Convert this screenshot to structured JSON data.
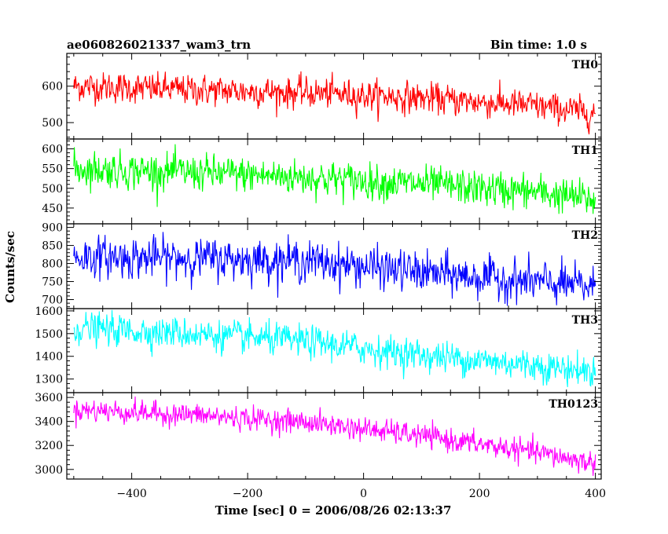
{
  "header": {
    "title": "ae060826021337_wam3_trn",
    "bin_time": "Bin time: 1.0 s"
  },
  "chart_data": {
    "type": "line",
    "title": "ae060826021337_wam3_trn",
    "xlabel": "Time [sec] 0 = 2006/08/26 02:13:37",
    "ylabel": "Counts/sec",
    "xlim": [
      -512,
      410
    ],
    "x_range": [
      -500,
      400
    ],
    "bin_time_s": 1.0,
    "x_ticks": [
      -400,
      -200,
      0,
      200,
      400
    ],
    "grid": false,
    "panels": [
      {
        "name": "TH0",
        "color": "#ff0000",
        "ylim": [
          455,
          690
        ],
        "y_ticks": [
          500,
          600
        ],
        "trend": [
          [
            -500,
            600
          ],
          [
            -300,
            590
          ],
          [
            -100,
            582
          ],
          [
            100,
            568
          ],
          [
            300,
            545
          ],
          [
            400,
            525
          ]
        ],
        "noise_sd": 24
      },
      {
        "name": "TH1",
        "color": "#00ff00",
        "ylim": [
          410,
          625
        ],
        "y_ticks": [
          450,
          500,
          550,
          600
        ],
        "trend": [
          [
            -500,
            550
          ],
          [
            -300,
            540
          ],
          [
            -100,
            528
          ],
          [
            100,
            510
          ],
          [
            300,
            490
          ],
          [
            400,
            470
          ]
        ],
        "noise_sd": 26
      },
      {
        "name": "TH2",
        "color": "#0000ff",
        "ylim": [
          675,
          910
        ],
        "y_ticks": [
          700,
          750,
          800,
          850,
          900
        ],
        "trend": [
          [
            -500,
            818
          ],
          [
            -300,
            815
          ],
          [
            -100,
            808
          ],
          [
            100,
            775
          ],
          [
            300,
            748
          ],
          [
            400,
            735
          ]
        ],
        "noise_sd": 32
      },
      {
        "name": "TH3",
        "color": "#00ffff",
        "ylim": [
          1240,
          1610
        ],
        "y_ticks": [
          1300,
          1400,
          1500,
          1600
        ],
        "trend": [
          [
            -500,
            1525
          ],
          [
            -300,
            1500
          ],
          [
            -100,
            1465
          ],
          [
            100,
            1405
          ],
          [
            300,
            1360
          ],
          [
            400,
            1330
          ]
        ],
        "noise_sd": 40
      },
      {
        "name": "TH0123",
        "color": "#ff00ff",
        "ylim": [
          2920,
          3640
        ],
        "y_ticks": [
          3000,
          3200,
          3400,
          3600
        ],
        "trend": [
          [
            -500,
            3500
          ],
          [
            -300,
            3455
          ],
          [
            -100,
            3395
          ],
          [
            100,
            3280
          ],
          [
            300,
            3140
          ],
          [
            400,
            3050
          ]
        ],
        "noise_sd": 55
      }
    ]
  }
}
